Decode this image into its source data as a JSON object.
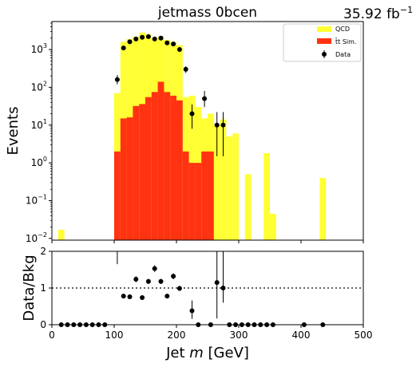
{
  "chart_data": [
    {
      "type": "bar",
      "title": "jetmass 0bcen",
      "lumi_label": "35.92 fb",
      "lumi_exponent": "−1",
      "xlabel": "",
      "ylabel": "Events",
      "yscale": "log",
      "ylim": [
        0.009,
        5500
      ],
      "xlim": [
        0,
        500
      ],
      "bin_width": 10,
      "y_ticks": [
        {
          "label": "10",
          "exp": "−2",
          "value": 0.01
        },
        {
          "label": "10",
          "exp": "−1",
          "value": 0.1
        },
        {
          "label": "10",
          "exp": "0",
          "value": 1
        },
        {
          "label": "10",
          "exp": "1",
          "value": 10
        },
        {
          "label": "10",
          "exp": "2",
          "value": 100
        },
        {
          "label": "10",
          "exp": "3",
          "value": 1000
        }
      ],
      "legend_position": "top-right",
      "legend": [
        {
          "label": "QCD",
          "color": "#ffff33",
          "kind": "box"
        },
        {
          "label": "t̄t Sim.",
          "color": "#ff3311",
          "kind": "box"
        },
        {
          "label": "Data",
          "color": "#000000",
          "kind": "marker"
        }
      ],
      "series": [
        {
          "name": "QCD",
          "color": "#ffff33",
          "stacked": true,
          "bins": [
            [
              10,
              0.017
            ],
            [
              100,
              70
            ],
            [
              110,
              1600
            ],
            [
              120,
              1900
            ],
            [
              130,
              2200
            ],
            [
              140,
              2800
            ],
            [
              150,
              2500
            ],
            [
              160,
              2000
            ],
            [
              170,
              2200
            ],
            [
              180,
              1800
            ],
            [
              190,
              1600
            ],
            [
              200,
              1300
            ],
            [
              210,
              55
            ],
            [
              220,
              60
            ],
            [
              230,
              30
            ],
            [
              240,
              15
            ],
            [
              250,
              20
            ],
            [
              260,
              10
            ],
            [
              270,
              14
            ],
            [
              280,
              5
            ],
            [
              290,
              6
            ],
            [
              310,
              0.5
            ],
            [
              340,
              1.8
            ],
            [
              350,
              0.045
            ],
            [
              430,
              0.4
            ]
          ]
        },
        {
          "name": "t̄t Sim.",
          "color": "#ff3311",
          "stacked": true,
          "bins": [
            [
              100,
              2
            ],
            [
              110,
              15
            ],
            [
              120,
              16
            ],
            [
              130,
              32
            ],
            [
              140,
              36
            ],
            [
              150,
              55
            ],
            [
              160,
              75
            ],
            [
              170,
              140
            ],
            [
              180,
              75
            ],
            [
              190,
              60
            ],
            [
              200,
              45
            ],
            [
              210,
              2
            ],
            [
              220,
              1
            ],
            [
              230,
              1
            ],
            [
              240,
              2
            ],
            [
              250,
              2
            ]
          ]
        }
      ],
      "data_points": [
        {
          "x": 105,
          "y": 160,
          "err_lo": 40,
          "err_hi": 50
        },
        {
          "x": 115,
          "y": 1100,
          "err_lo": 80,
          "err_hi": 80
        },
        {
          "x": 125,
          "y": 1600,
          "err_lo": 90,
          "err_hi": 90
        },
        {
          "x": 135,
          "y": 1900,
          "err_lo": 100,
          "err_hi": 100
        },
        {
          "x": 145,
          "y": 2100,
          "err_lo": 100,
          "err_hi": 100
        },
        {
          "x": 155,
          "y": 2200,
          "err_lo": 100,
          "err_hi": 100
        },
        {
          "x": 165,
          "y": 1900,
          "err_lo": 100,
          "err_hi": 100
        },
        {
          "x": 175,
          "y": 2000,
          "err_lo": 100,
          "err_hi": 100
        },
        {
          "x": 185,
          "y": 1500,
          "err_lo": 90,
          "err_hi": 90
        },
        {
          "x": 195,
          "y": 1400,
          "err_lo": 90,
          "err_hi": 90
        },
        {
          "x": 205,
          "y": 1000,
          "err_lo": 70,
          "err_hi": 70
        },
        {
          "x": 215,
          "y": 300,
          "err_lo": 60,
          "err_hi": 60
        },
        {
          "x": 225,
          "y": 20,
          "err_lo": 12,
          "err_hi": 15
        },
        {
          "x": 245,
          "y": 50,
          "err_lo": 20,
          "err_hi": 30
        },
        {
          "x": 265,
          "y": 10,
          "err_lo": 8.5,
          "err_hi": 12
        },
        {
          "x": 275,
          "y": 10,
          "err_lo": 8.5,
          "err_hi": 12
        }
      ]
    },
    {
      "type": "scatter",
      "xlabel_prefix": "Jet ",
      "xlabel_var": "m",
      "xlabel_suffix": " [GeV]",
      "ylabel": "Data/Bkg",
      "xlim": [
        0,
        500
      ],
      "ylim": [
        0,
        2
      ],
      "reference_line": 1,
      "x_ticks": [
        0,
        100,
        200,
        300,
        400,
        500
      ],
      "y_ticks": [
        0,
        1,
        2
      ],
      "points": [
        {
          "x": 15,
          "y": 0
        },
        {
          "x": 25,
          "y": 0
        },
        {
          "x": 35,
          "y": 0
        },
        {
          "x": 45,
          "y": 0
        },
        {
          "x": 55,
          "y": 0
        },
        {
          "x": 65,
          "y": 0
        },
        {
          "x": 75,
          "y": 0
        },
        {
          "x": 85,
          "y": 0
        },
        {
          "x": 105,
          "y": 2.0,
          "err_lo": 0.35,
          "err_hi": 0.35
        },
        {
          "x": 115,
          "y": 0.78,
          "err_lo": 0.05,
          "err_hi": 0.05
        },
        {
          "x": 125,
          "y": 0.76,
          "err_lo": 0.04,
          "err_hi": 0.04
        },
        {
          "x": 135,
          "y": 1.24,
          "err_lo": 0.08,
          "err_hi": 0.08
        },
        {
          "x": 145,
          "y": 0.74,
          "err_lo": 0.04,
          "err_hi": 0.04
        },
        {
          "x": 155,
          "y": 1.18,
          "err_lo": 0.07,
          "err_hi": 0.07
        },
        {
          "x": 165,
          "y": 1.53,
          "err_lo": 0.09,
          "err_hi": 0.09
        },
        {
          "x": 175,
          "y": 1.18,
          "err_lo": 0.07,
          "err_hi": 0.07
        },
        {
          "x": 185,
          "y": 0.78,
          "err_lo": 0.04,
          "err_hi": 0.04
        },
        {
          "x": 195,
          "y": 1.32,
          "err_lo": 0.08,
          "err_hi": 0.08
        },
        {
          "x": 205,
          "y": 0.99,
          "err_lo": 0.07,
          "err_hi": 0.07
        },
        {
          "x": 225,
          "y": 0.38,
          "err_lo": 0.22,
          "err_hi": 0.28
        },
        {
          "x": 235,
          "y": 0
        },
        {
          "x": 255,
          "y": 0
        },
        {
          "x": 265,
          "y": 1.15,
          "err_lo": 0.98,
          "err_hi": 1.2
        },
        {
          "x": 275,
          "y": 1.0,
          "err_lo": 0.4,
          "err_hi": 1.2
        },
        {
          "x": 285,
          "y": 0
        },
        {
          "x": 295,
          "y": 0
        },
        {
          "x": 305,
          "y": 0
        },
        {
          "x": 315,
          "y": 0
        },
        {
          "x": 325,
          "y": 0
        },
        {
          "x": 335,
          "y": 0
        },
        {
          "x": 345,
          "y": 0
        },
        {
          "x": 355,
          "y": 0
        },
        {
          "x": 405,
          "y": 0
        },
        {
          "x": 435,
          "y": 0
        }
      ]
    }
  ]
}
